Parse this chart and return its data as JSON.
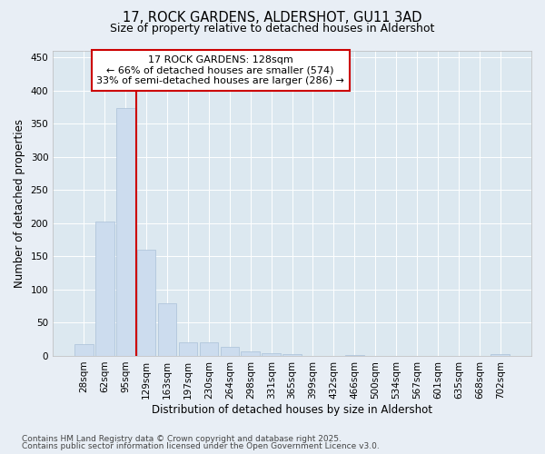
{
  "title_line1": "17, ROCK GARDENS, ALDERSHOT, GU11 3AD",
  "title_line2": "Size of property relative to detached houses in Aldershot",
  "xlabel": "Distribution of detached houses by size in Aldershot",
  "ylabel": "Number of detached properties",
  "categories": [
    "28sqm",
    "62sqm",
    "95sqm",
    "129sqm",
    "163sqm",
    "197sqm",
    "230sqm",
    "264sqm",
    "298sqm",
    "331sqm",
    "365sqm",
    "399sqm",
    "432sqm",
    "466sqm",
    "500sqm",
    "534sqm",
    "567sqm",
    "601sqm",
    "635sqm",
    "668sqm",
    "702sqm"
  ],
  "values": [
    18,
    202,
    374,
    160,
    80,
    21,
    21,
    14,
    7,
    4,
    2,
    0,
    0,
    1,
    0,
    0,
    0,
    0,
    0,
    0,
    2
  ],
  "bar_color": "#ccdcee",
  "bar_edge_color": "#aac0d8",
  "vline_color": "#cc0000",
  "annotation_line1": "17 ROCK GARDENS: 128sqm",
  "annotation_line2": "← 66% of detached houses are smaller (574)",
  "annotation_line3": "33% of semi-detached houses are larger (286) →",
  "annotation_box_color": "#ffffff",
  "annotation_box_edge": "#cc0000",
  "ylim": [
    0,
    460
  ],
  "yticks": [
    0,
    50,
    100,
    150,
    200,
    250,
    300,
    350,
    400,
    450
  ],
  "background_color": "#e8eef5",
  "plot_background": "#dce8f0",
  "grid_color": "#ffffff",
  "footer_line1": "Contains HM Land Registry data © Crown copyright and database right 2025.",
  "footer_line2": "Contains public sector information licensed under the Open Government Licence v3.0.",
  "title_fontsize": 10.5,
  "subtitle_fontsize": 9,
  "axis_label_fontsize": 8.5,
  "tick_fontsize": 7.5,
  "annotation_fontsize": 8,
  "footer_fontsize": 6.5
}
